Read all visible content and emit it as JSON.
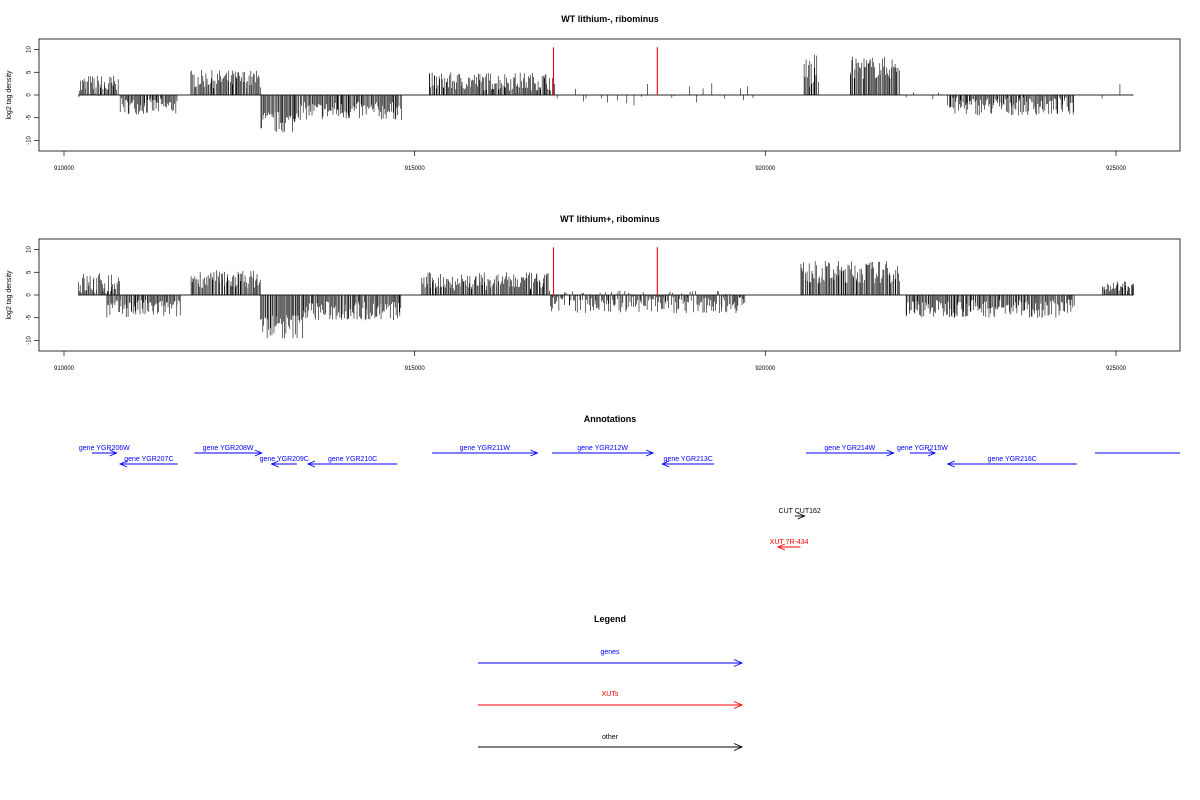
{
  "colors": {
    "gene": "#0000ff",
    "xut": "#ff0000",
    "other": "#000000",
    "marker": "#ff0000",
    "bar": "#000000"
  },
  "annotations_title": "Annotations",
  "legend": {
    "title": "Legend",
    "items": [
      {
        "label": "genes",
        "color": "#0000ff"
      },
      {
        "label": "XUTs",
        "color": "#ff0000"
      },
      {
        "label": "other",
        "color": "#000000"
      }
    ]
  },
  "chart_data": [
    {
      "type": "bar",
      "title": "WT lithium-, ribominus",
      "xlabel": "",
      "ylabel": "log2 tag density",
      "xlim": [
        910000,
        926000
      ],
      "ylim": [
        -11,
        11
      ],
      "xticks": [
        "910000",
        "915000",
        "920000",
        "925000"
      ],
      "yticks": [
        "10",
        "5",
        "0",
        "-5",
        "-10"
      ],
      "grid": false,
      "markers": [
        916980,
        918460
      ],
      "regions": [
        {
          "start": 910200,
          "end": 910800,
          "mean": 2,
          "jitter": 2.5
        },
        {
          "start": 910800,
          "end": 911600,
          "mean": -2.5,
          "jitter": 1.8
        },
        {
          "start": 911800,
          "end": 912800,
          "mean": 3.5,
          "jitter": 2
        },
        {
          "start": 912800,
          "end": 913300,
          "mean": -6,
          "jitter": 2.5
        },
        {
          "start": 913300,
          "end": 914800,
          "mean": -3.5,
          "jitter": 2
        },
        {
          "start": 915200,
          "end": 916950,
          "mean": 3,
          "jitter": 2
        },
        {
          "start": 916950,
          "end": 919800,
          "mean": 0.5,
          "jitter": 3,
          "sparse": true
        },
        {
          "start": 920550,
          "end": 920750,
          "mean": 5,
          "jitter": 4
        },
        {
          "start": 921200,
          "end": 921900,
          "mean": 6,
          "jitter": 2.5
        },
        {
          "start": 921900,
          "end": 922500,
          "mean": 1,
          "jitter": 2.5,
          "sparse": true
        },
        {
          "start": 922600,
          "end": 924400,
          "mean": -2.5,
          "jitter": 2
        },
        {
          "start": 924800,
          "end": 925250,
          "mean": 1.5,
          "jitter": 2,
          "sparse": true
        }
      ]
    },
    {
      "type": "bar",
      "title": "WT lithium+, ribominus",
      "xlabel": "",
      "ylabel": "log2 tag density",
      "xlim": [
        910000,
        926000
      ],
      "ylim": [
        -11,
        11
      ],
      "xticks": [
        "910000",
        "915000",
        "920000",
        "925000"
      ],
      "yticks": [
        "10",
        "5",
        "0",
        "-5",
        "-10"
      ],
      "grid": false,
      "markers": [
        916980,
        918460
      ],
      "regions": [
        {
          "start": 910200,
          "end": 910800,
          "mean": 2.5,
          "jitter": 2.5
        },
        {
          "start": 910600,
          "end": 911650,
          "mean": -3,
          "jitter": 2
        },
        {
          "start": 911800,
          "end": 912800,
          "mean": 3.5,
          "jitter": 2
        },
        {
          "start": 912800,
          "end": 913400,
          "mean": -7,
          "jitter": 3
        },
        {
          "start": 913400,
          "end": 914800,
          "mean": -3.5,
          "jitter": 2.2
        },
        {
          "start": 915100,
          "end": 916900,
          "mean": 3,
          "jitter": 2
        },
        {
          "start": 916900,
          "end": 919700,
          "mean": -1.5,
          "jitter": 2.5
        },
        {
          "start": 920500,
          "end": 921900,
          "mean": 5,
          "jitter": 2.5
        },
        {
          "start": 922000,
          "end": 924400,
          "mean": -3,
          "jitter": 2
        },
        {
          "start": 924800,
          "end": 925250,
          "mean": 2,
          "jitter": 1.2
        }
      ]
    }
  ],
  "features": [
    {
      "label": "gene YGR206W",
      "start": 910400,
      "end": 910750,
      "strand": "+",
      "row": 0,
      "kind": "gene"
    },
    {
      "label": "gene YGR207C",
      "start": 910800,
      "end": 911620,
      "strand": "-",
      "row": 1,
      "kind": "gene"
    },
    {
      "label": "gene YGR208W",
      "start": 911860,
      "end": 912820,
      "strand": "+",
      "row": 0,
      "kind": "gene"
    },
    {
      "label": "gene YGR209C",
      "start": 912960,
      "end": 913320,
      "strand": "-",
      "row": 1,
      "kind": "gene"
    },
    {
      "label": "gene YGR210C",
      "start": 913480,
      "end": 914750,
      "strand": "-",
      "row": 1,
      "kind": "gene"
    },
    {
      "label": "gene YGR211W",
      "start": 915250,
      "end": 916750,
      "strand": "+",
      "row": 0,
      "kind": "gene"
    },
    {
      "label": "gene YGR212W",
      "start": 916960,
      "end": 918400,
      "strand": "+",
      "row": 0,
      "kind": "gene"
    },
    {
      "label": "gene YGR213C",
      "start": 918530,
      "end": 919270,
      "strand": "-",
      "row": 1,
      "kind": "gene"
    },
    {
      "label": "gene YGR214W",
      "start": 920580,
      "end": 921830,
      "strand": "+",
      "row": 0,
      "kind": "gene"
    },
    {
      "label": "gene YGR215W",
      "start": 922060,
      "end": 922420,
      "strand": "+",
      "row": 0,
      "kind": "gene"
    },
    {
      "label": "gene YGR216C",
      "start": 922600,
      "end": 924440,
      "strand": "-",
      "row": 1,
      "kind": "gene"
    },
    {
      "label": "",
      "start": 924700,
      "end": 926000,
      "strand": "none",
      "row": 0,
      "kind": "gene"
    },
    {
      "label": "CUT CUT162",
      "start": 920420,
      "end": 920560,
      "strand": "+",
      "row": 2,
      "kind": "other"
    },
    {
      "label": "XUT 7R-434",
      "start": 920180,
      "end": 920500,
      "strand": "-",
      "row": 3,
      "kind": "xut"
    }
  ]
}
